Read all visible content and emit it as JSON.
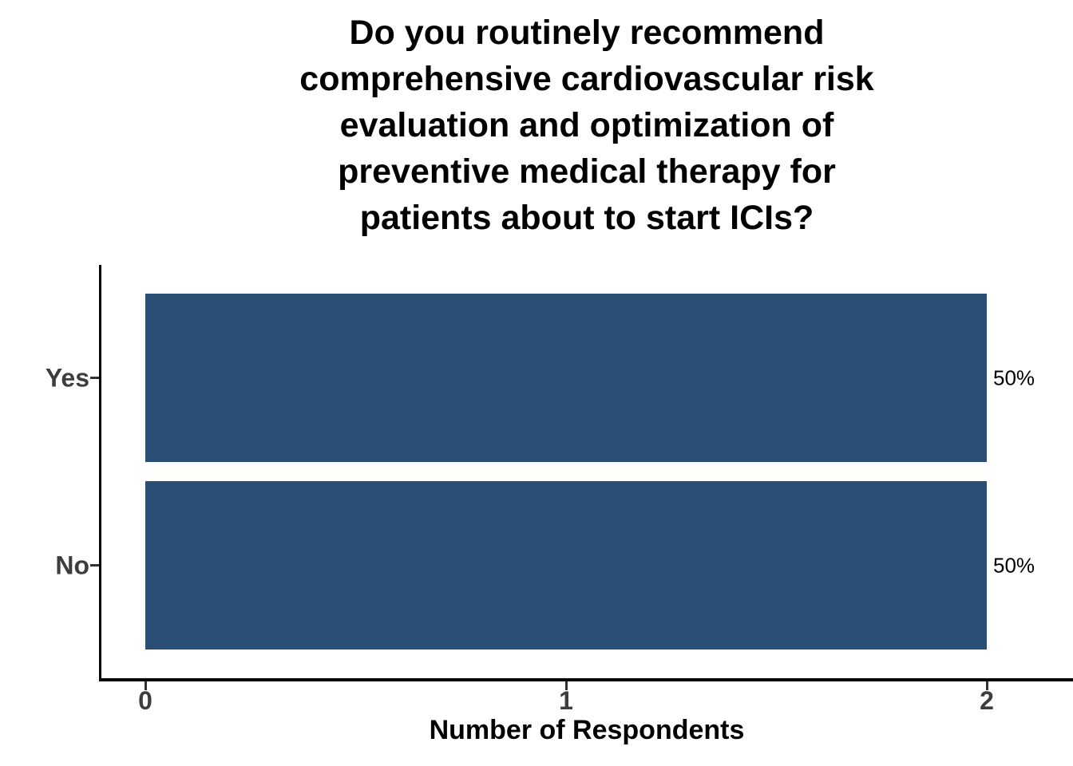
{
  "chart_data": {
    "type": "bar",
    "orientation": "horizontal",
    "title": "Do you routinely recommend comprehensive cardiovascular risk evaluation and optimization of preventive medical therapy for patients about to start ICIs?",
    "title_lines": [
      "Do you routinely recommend",
      "comprehensive cardiovascular risk",
      "evaluation and optimization of",
      "preventive medical therapy for",
      "patients about to start ICIs?"
    ],
    "categories": [
      "Yes",
      "No"
    ],
    "values": [
      2,
      2
    ],
    "value_labels": [
      "50%",
      "50%"
    ],
    "xlabel": "Number of Respondents",
    "ylabel": "",
    "x_ticks": [
      "0",
      "1",
      "2"
    ],
    "xlim": [
      0,
      2
    ],
    "grid": false,
    "legend": "none",
    "colors": {
      "bar": "#2B4F74",
      "axis": "#000000",
      "tick_mark": "#333333",
      "tick_label": "#3D3D3D",
      "value_label": "#000000",
      "title": "#000000",
      "xlabel": "#000000",
      "background": "#FFFFFF"
    }
  }
}
